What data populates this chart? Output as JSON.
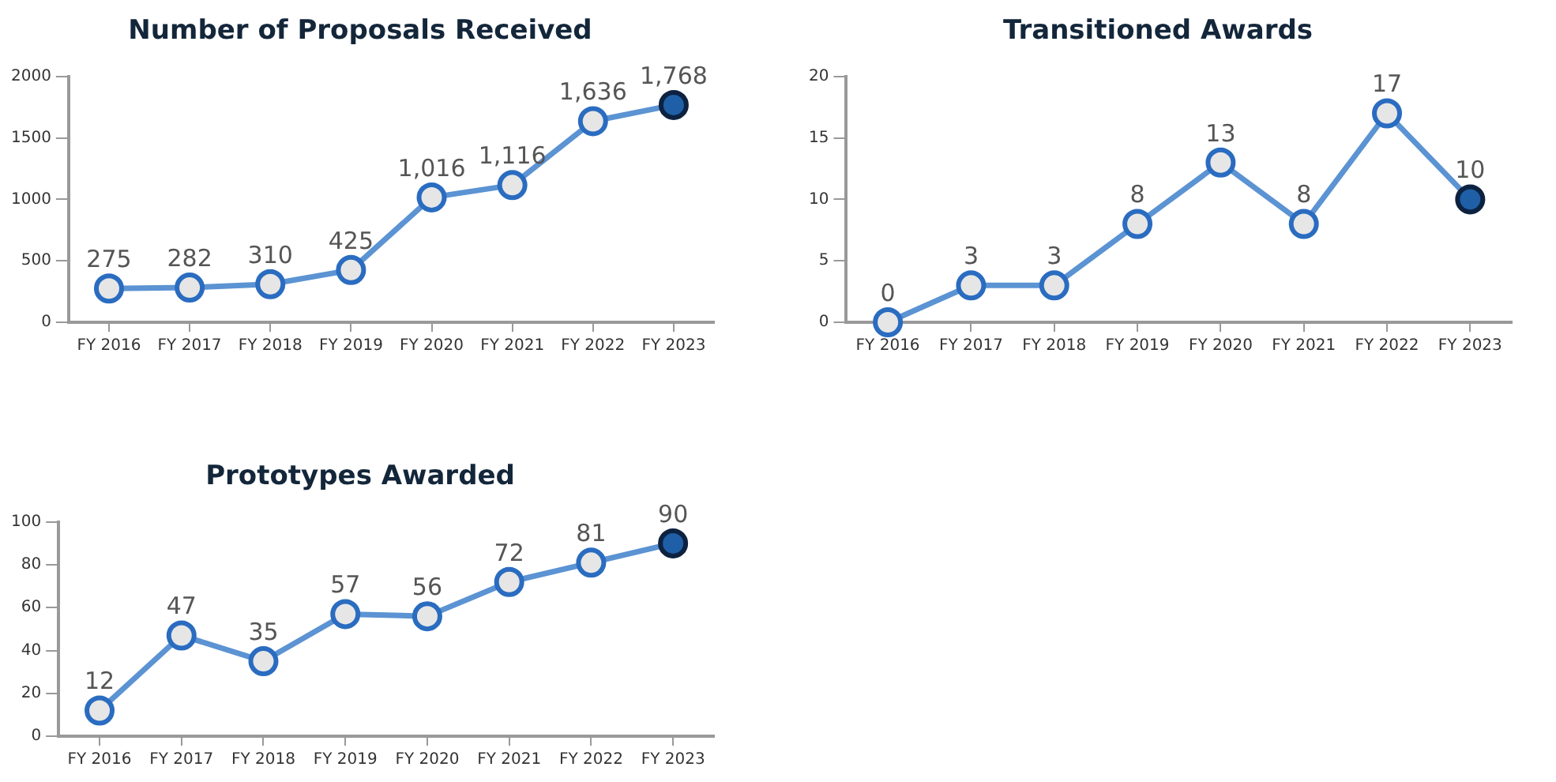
{
  "chart_data": [
    {
      "type": "line",
      "title": "Number of Proposals Received",
      "categories": [
        "FY 2016",
        "FY 2017",
        "FY 2018",
        "FY 2019",
        "FY 2020",
        "FY 2021",
        "FY 2022",
        "FY 2023"
      ],
      "series": [
        {
          "color": "#5b93d3",
          "colors": [
            "#e6e6e6",
            "#e6e6e6",
            "#e6e6e6",
            "#e6e6e6",
            "#e6e6e6",
            "#e6e6e6",
            "#e6e6e6",
            "#1f5fa8"
          ],
          "values": [
            275,
            282,
            310,
            425,
            1016,
            1116,
            1636,
            1768
          ],
          "value_labels": [
            "275",
            "282",
            "310",
            "425",
            "1,016",
            "1,116",
            "1,636",
            "1,768"
          ]
        }
      ],
      "ylim": [
        0,
        2000
      ],
      "yticks": [
        0,
        500,
        1000,
        1500,
        2000
      ],
      "grid": false,
      "legend": false,
      "marker": "circle"
    },
    {
      "type": "line",
      "title": "Transitioned Awards",
      "categories": [
        "FY 2016",
        "FY 2017",
        "FY 2018",
        "FY 2019",
        "FY 2020",
        "FY 2021",
        "FY 2022",
        "FY 2023"
      ],
      "series": [
        {
          "color": "#5b93d3",
          "colors": [
            "#e6e6e6",
            "#e6e6e6",
            "#e6e6e6",
            "#e6e6e6",
            "#e6e6e6",
            "#e6e6e6",
            "#e6e6e6",
            "#1f5fa8"
          ],
          "values": [
            0,
            3,
            3,
            8,
            13,
            8,
            17,
            10
          ]
        }
      ],
      "data_labels": true,
      "ylim": [
        0,
        20
      ],
      "yticks": [
        0,
        5,
        10,
        15,
        20
      ],
      "grid": false,
      "legend": false,
      "marker": "circle"
    },
    {
      "type": "line",
      "title": "Prototypes Awarded",
      "categories": [
        "FY 2016",
        "FY 2017",
        "FY 2018",
        "FY 2019",
        "FY 2020",
        "FY 2021",
        "FY 2022",
        "FY 2023"
      ],
      "series": [
        {
          "color": "#5b93d3",
          "colors": [
            "#e6e6e6",
            "#e6e6e6",
            "#e6e6e6",
            "#e6e6e6",
            "#e6e6e6",
            "#e6e6e6",
            "#e6e6e6",
            "#1f5fa8"
          ],
          "values": [
            12,
            47,
            35,
            57,
            56,
            72,
            81,
            90
          ]
        }
      ],
      "data_labels": true,
      "ylim": [
        0,
        100
      ],
      "yticks": [
        0,
        20,
        40,
        60,
        80,
        100
      ],
      "grid": false,
      "legend": false,
      "marker": "circle"
    }
  ]
}
